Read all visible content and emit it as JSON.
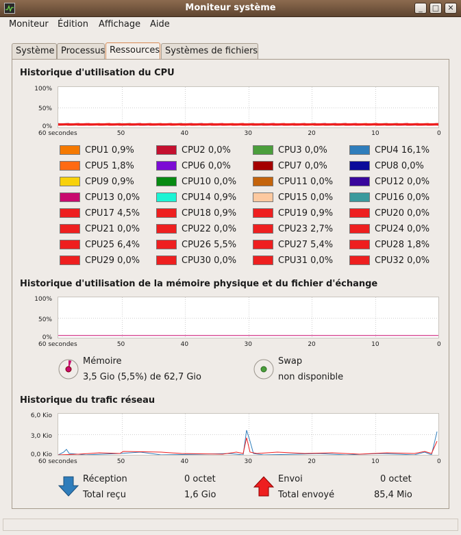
{
  "window": {
    "title": "Moniteur système",
    "min_label": "_",
    "max_label": "□",
    "close_label": "✕"
  },
  "menubar": [
    "Moniteur",
    "Édition",
    "Affichage",
    "Aide"
  ],
  "tabs": [
    "Système",
    "Processus",
    "Ressources",
    "Systèmes de fichiers"
  ],
  "active_tab": "Ressources",
  "x_ticks": [
    "60 secondes",
    "50",
    "40",
    "30",
    "20",
    "10",
    "0"
  ],
  "cpu": {
    "title": "Historique d'utilisation du CPU",
    "y_ticks": [
      "100%",
      "50%",
      "0%"
    ],
    "legend": [
      {
        "name": "CPU1",
        "value": "0,9%",
        "color": "#f57900"
      },
      {
        "name": "CPU2",
        "value": "0,0%",
        "color": "#c4102f"
      },
      {
        "name": "CPU3",
        "value": "0,0%",
        "color": "#4b9e3c"
      },
      {
        "name": "CPU4",
        "value": "16,1%",
        "color": "#2f7dbb"
      },
      {
        "name": "CPU5",
        "value": "1,8%",
        "color": "#ff6a13"
      },
      {
        "name": "CPU6",
        "value": "0,0%",
        "color": "#7b0cd4"
      },
      {
        "name": "CPU7",
        "value": "0,0%",
        "color": "#a40000"
      },
      {
        "name": "CPU8",
        "value": "0,0%",
        "color": "#0b0b9a"
      },
      {
        "name": "CPU9",
        "value": "0,9%",
        "color": "#f8d10a"
      },
      {
        "name": "CPU10",
        "value": "0,0%",
        "color": "#078a12"
      },
      {
        "name": "CPU11",
        "value": "0,0%",
        "color": "#c4640c"
      },
      {
        "name": "CPU12",
        "value": "0,0%",
        "color": "#38069c"
      },
      {
        "name": "CPU13",
        "value": "0,0%",
        "color": "#c80a6e"
      },
      {
        "name": "CPU14",
        "value": "0,9%",
        "color": "#1cf4d4"
      },
      {
        "name": "CPU15",
        "value": "0,0%",
        "color": "#fdc9a0"
      },
      {
        "name": "CPU16",
        "value": "0,0%",
        "color": "#3a9a9d"
      },
      {
        "name": "CPU17",
        "value": "4,5%",
        "color": "#ee1f1f"
      },
      {
        "name": "CPU18",
        "value": "0,9%",
        "color": "#ee1f1f"
      },
      {
        "name": "CPU19",
        "value": "0,9%",
        "color": "#ee1f1f"
      },
      {
        "name": "CPU20",
        "value": "0,0%",
        "color": "#ee1f1f"
      },
      {
        "name": "CPU21",
        "value": "0,0%",
        "color": "#ee1f1f"
      },
      {
        "name": "CPU22",
        "value": "0,0%",
        "color": "#ee1f1f"
      },
      {
        "name": "CPU23",
        "value": "2,7%",
        "color": "#ee1f1f"
      },
      {
        "name": "CPU24",
        "value": "0,0%",
        "color": "#ee1f1f"
      },
      {
        "name": "CPU25",
        "value": "6,4%",
        "color": "#ee1f1f"
      },
      {
        "name": "CPU26",
        "value": "5,5%",
        "color": "#ee1f1f"
      },
      {
        "name": "CPU27",
        "value": "5,4%",
        "color": "#ee1f1f"
      },
      {
        "name": "CPU28",
        "value": "1,8%",
        "color": "#ee1f1f"
      },
      {
        "name": "CPU29",
        "value": "0,0%",
        "color": "#ee1f1f"
      },
      {
        "name": "CPU30",
        "value": "0,0%",
        "color": "#ee1f1f"
      },
      {
        "name": "CPU31",
        "value": "0,0%",
        "color": "#ee1f1f"
      },
      {
        "name": "CPU32",
        "value": "0,0%",
        "color": "#ee1f1f"
      }
    ]
  },
  "memory": {
    "title": "Historique d'utilisation de la mémoire physique et du fichier d'échange",
    "y_ticks": [
      "100%",
      "50%",
      "0%"
    ],
    "mem_label": "Mémoire",
    "mem_value": "3,5 Gio (5,5%) de 62,7 Gio",
    "mem_percent": 5.5,
    "mem_color": "#c80a6e",
    "swap_label": "Swap",
    "swap_value": "non disponible",
    "swap_color": "#4b9e3c"
  },
  "network": {
    "title": "Historique du trafic réseau",
    "y_ticks": [
      "6,0 Kio",
      "3,0 Kio",
      "0,0 Kio"
    ],
    "rx_label": "Réception",
    "rx_rate": "0 octet",
    "rx_total_label": "Total reçu",
    "rx_total": "1,6 Gio",
    "rx_color": "#2f7dbb",
    "tx_label": "Envoi",
    "tx_rate": "0 octet",
    "tx_total_label": "Total envoyé",
    "tx_total": "85,4 Mio",
    "tx_color": "#ee1f1f"
  }
}
